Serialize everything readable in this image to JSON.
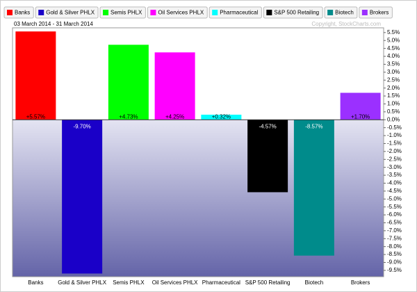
{
  "chart_data": {
    "type": "bar",
    "subtitle": "03 March 2014 - 31 March 2014",
    "annotation": "Copyright, StockCharts.com",
    "categories": [
      "Banks",
      "Gold & Silver PHLX",
      "Semis PHLX",
      "Oil Services PHLX",
      "Pharmaceutical",
      "S&P 500 Retailing",
      "Biotech",
      "Brokers"
    ],
    "values": [
      5.57,
      -9.7,
      4.73,
      4.25,
      0.32,
      -4.57,
      -8.57,
      1.7
    ],
    "value_labels": [
      "+5.57%",
      "-9.70%",
      "+4.73%",
      "+4.25%",
      "+0.32%",
      "-4.57%",
      "-8.57%",
      "+1.70%"
    ],
    "colors": [
      "#ff0000",
      "#1a00c8",
      "#00ff00",
      "#ff00ff",
      "#00ffff",
      "#000000",
      "#008b8b",
      "#9b30ff"
    ],
    "ylim": [
      -9.9,
      5.8
    ],
    "yticks": [
      {
        "value": 5.5,
        "label": "5.5%"
      },
      {
        "value": 5.0,
        "label": "5.0%"
      },
      {
        "value": 4.5,
        "label": "4.5%"
      },
      {
        "value": 4.0,
        "label": "4.0%"
      },
      {
        "value": 3.5,
        "label": "3.5%"
      },
      {
        "value": 3.0,
        "label": "3.0%"
      },
      {
        "value": 2.5,
        "label": "2.5%"
      },
      {
        "value": 2.0,
        "label": "2.0%"
      },
      {
        "value": 1.5,
        "label": "1.5%"
      },
      {
        "value": 1.0,
        "label": "1.0%"
      },
      {
        "value": 0.5,
        "label": "0.5%"
      },
      {
        "value": 0,
        "label": "0.0%"
      },
      {
        "value": -0.5,
        "label": "-0.5%"
      },
      {
        "value": -1.0,
        "label": "-1.0%"
      },
      {
        "value": -1.5,
        "label": "-1.5%"
      },
      {
        "value": -2.0,
        "label": "-2.0%"
      },
      {
        "value": -2.5,
        "label": "-2.5%"
      },
      {
        "value": -3.0,
        "label": "-3.0%"
      },
      {
        "value": -3.5,
        "label": "-3.5%"
      },
      {
        "value": -4.0,
        "label": "-4.0%"
      },
      {
        "value": -4.5,
        "label": "-4.5%"
      },
      {
        "value": -5.0,
        "label": "-5.0%"
      },
      {
        "value": -5.5,
        "label": "-5.5%"
      },
      {
        "value": -6.0,
        "label": "-6.0%"
      },
      {
        "value": -6.5,
        "label": "-6.5%"
      },
      {
        "value": -7.0,
        "label": "-7.0%"
      },
      {
        "value": -7.5,
        "label": "-7.5%"
      },
      {
        "value": -8.0,
        "label": "-8.0%"
      },
      {
        "value": -8.5,
        "label": "-8.5%"
      },
      {
        "value": -9.0,
        "label": "-9.0%"
      },
      {
        "value": -9.5,
        "label": "-9.5%"
      }
    ]
  }
}
